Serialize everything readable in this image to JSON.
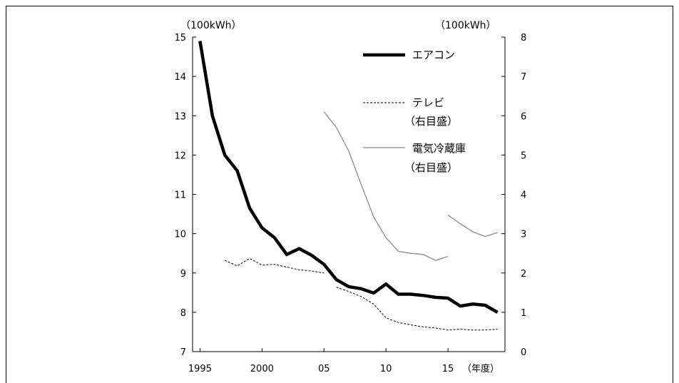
{
  "chart_data": {
    "type": "line",
    "left_axis": {
      "unit": "（100kWh）",
      "ylim": [
        7,
        15
      ],
      "ticks": [
        "7",
        "8",
        "9",
        "10",
        "11",
        "12",
        "13",
        "14",
        "15"
      ]
    },
    "right_axis": {
      "unit": "（100kWh）",
      "ylim": [
        0,
        8
      ],
      "ticks": [
        "0",
        "1",
        "2",
        "3",
        "4",
        "5",
        "6",
        "7",
        "8"
      ]
    },
    "x_axis": {
      "xlim": [
        1994.4,
        2019.6
      ],
      "ticks": [
        {
          "x": 1995,
          "label": "1995"
        },
        {
          "x": 2000,
          "label": "2000"
        },
        {
          "x": 2005,
          "label": "05"
        },
        {
          "x": 2010,
          "label": "10"
        },
        {
          "x": 2015,
          "label": "15"
        }
      ],
      "unit": "（年度）"
    },
    "series": [
      {
        "name": "エアコン",
        "axis": "left",
        "style": "thick",
        "segments": [
          [
            [
              1995,
              14.9
            ],
            [
              1996,
              13.0
            ],
            [
              1997,
              12.0
            ],
            [
              1998,
              11.6
            ],
            [
              1999,
              10.65
            ],
            [
              2000,
              10.15
            ],
            [
              2001,
              9.9
            ],
            [
              2002,
              9.47
            ],
            [
              2003,
              9.62
            ],
            [
              2004,
              9.45
            ],
            [
              2005,
              9.22
            ],
            [
              2006,
              8.83
            ],
            [
              2007,
              8.65
            ],
            [
              2008,
              8.6
            ],
            [
              2009,
              8.49
            ],
            [
              2010,
              8.72
            ],
            [
              2011,
              8.46
            ],
            [
              2012,
              8.46
            ],
            [
              2013,
              8.43
            ],
            [
              2014,
              8.38
            ],
            [
              2015,
              8.36
            ],
            [
              2016,
              8.16
            ],
            [
              2017,
              8.21
            ],
            [
              2018,
              8.18
            ],
            [
              2019,
              8.0
            ]
          ]
        ]
      },
      {
        "name": "テレビ",
        "sub": "（右目盛）",
        "axis": "right",
        "style": "dashed",
        "segments": [
          [
            [
              1997,
              2.32
            ],
            [
              1998,
              2.18
            ],
            [
              1999,
              2.37
            ],
            [
              2000,
              2.2
            ],
            [
              2001,
              2.22
            ],
            [
              2002,
              2.15
            ],
            [
              2003,
              2.08
            ],
            [
              2004,
              2.05
            ],
            [
              2005,
              2.0
            ]
          ],
          [
            [
              2006,
              1.64
            ],
            [
              2007,
              1.53
            ],
            [
              2008,
              1.4
            ],
            [
              2009,
              1.21
            ],
            [
              2010,
              0.86
            ],
            [
              2011,
              0.74
            ],
            [
              2012,
              0.68
            ],
            [
              2013,
              0.63
            ],
            [
              2014,
              0.6
            ],
            [
              2015,
              0.55
            ],
            [
              2016,
              0.57
            ],
            [
              2017,
              0.55
            ],
            [
              2018,
              0.55
            ],
            [
              2019,
              0.57
            ]
          ]
        ]
      },
      {
        "name": "電気冷蔵庫",
        "sub": "（右目盛）",
        "axis": "right",
        "style": "gray",
        "segments": [
          [
            [
              2005,
              6.1
            ],
            [
              2006,
              5.7
            ],
            [
              2007,
              5.1
            ],
            [
              2008,
              4.25
            ],
            [
              2009,
              3.43
            ],
            [
              2010,
              2.9
            ],
            [
              2011,
              2.55
            ],
            [
              2012,
              2.5
            ],
            [
              2013,
              2.47
            ],
            [
              2014,
              2.32
            ],
            [
              2015,
              2.42
            ]
          ],
          [
            [
              2015,
              3.47
            ],
            [
              2016,
              3.25
            ],
            [
              2017,
              3.05
            ],
            [
              2018,
              2.93
            ],
            [
              2019,
              3.03
            ]
          ]
        ]
      }
    ]
  }
}
